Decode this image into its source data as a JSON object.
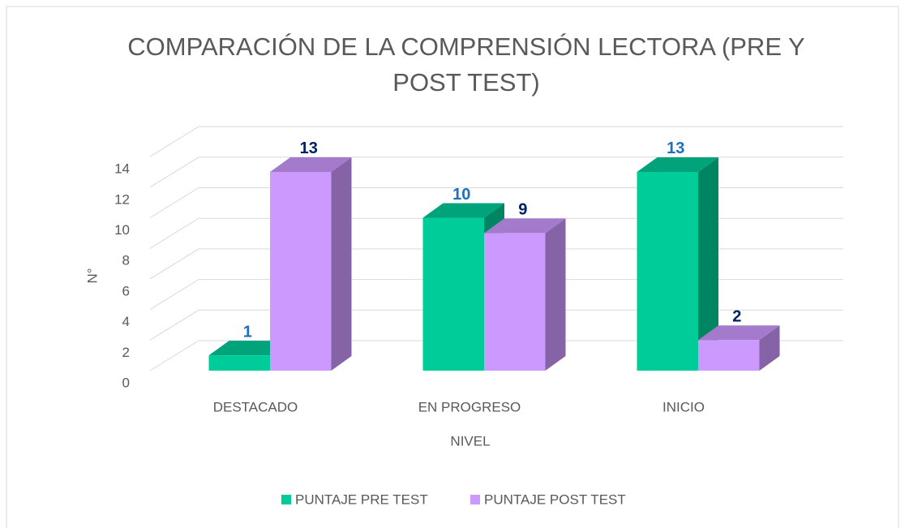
{
  "chart_data": {
    "type": "bar3d",
    "title": "COMPARACIÓN DE LA COMPRENSIÓN LECTORA (PRE Y POST TEST)",
    "x_label": "NIVEL",
    "y_label": "N°",
    "categories": [
      "DESTACADO",
      "EN PROGRESO",
      "INICIO"
    ],
    "series": [
      {
        "name": "PUNTAJE PRE TEST",
        "color": "#00cc99",
        "label_color": "#1f6fbf",
        "values": [
          1,
          10,
          13
        ]
      },
      {
        "name": "PUNTAJE POST TEST",
        "color": "#cc99ff",
        "label_color": "#002060",
        "values": [
          13,
          9,
          2
        ]
      }
    ],
    "ylim": [
      0,
      14
    ],
    "yticks": [
      0,
      2,
      4,
      6,
      8,
      10,
      12,
      14
    ],
    "grid": true,
    "legend": "bottom"
  }
}
